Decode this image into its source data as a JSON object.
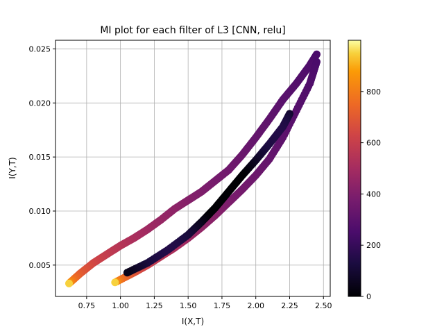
{
  "chart_data": {
    "type": "scatter",
    "title": "MI plot for each filter of L3 [CNN, relu]",
    "xlabel": "I(X,T)",
    "ylabel": "I(Y,T)",
    "xlim": [
      0.52,
      2.55
    ],
    "ylim": [
      0.0021,
      0.0258
    ],
    "xticks": [
      0.75,
      1.0,
      1.25,
      1.5,
      1.75,
      2.0,
      2.25,
      2.5
    ],
    "xtick_labels": [
      "0.75",
      "1.00",
      "1.25",
      "1.50",
      "1.75",
      "2.00",
      "2.25",
      "2.50"
    ],
    "yticks": [
      0.005,
      0.01,
      0.015,
      0.02,
      0.025
    ],
    "ytick_labels": [
      "0.005",
      "0.010",
      "0.015",
      "0.020",
      "0.025"
    ],
    "grid": true,
    "colormap": "inferno",
    "color_range": [
      0,
      1000
    ],
    "colorbar_ticks": [
      0,
      200,
      400,
      600,
      800
    ],
    "colorbar_tick_labels": [
      "0",
      "200",
      "400",
      "600",
      "800"
    ],
    "series": [
      {
        "points": [
          [
            0.62,
            0.0033
          ],
          [
            0.7,
            0.0042
          ],
          [
            0.8,
            0.0052
          ],
          [
            0.9,
            0.006
          ],
          [
            1.0,
            0.0068
          ],
          [
            1.1,
            0.0075
          ],
          [
            1.2,
            0.0083
          ],
          [
            1.3,
            0.0092
          ],
          [
            1.4,
            0.0102
          ],
          [
            1.5,
            0.011
          ],
          [
            1.6,
            0.0118
          ],
          [
            1.7,
            0.0128
          ],
          [
            1.8,
            0.0138
          ],
          [
            1.9,
            0.0152
          ],
          [
            2.0,
            0.0168
          ],
          [
            2.1,
            0.0185
          ],
          [
            2.2,
            0.0203
          ],
          [
            2.3,
            0.0218
          ],
          [
            2.4,
            0.0235
          ],
          [
            2.45,
            0.0245
          ]
        ]
      },
      {
        "points": [
          [
            0.96,
            0.0034
          ],
          [
            1.1,
            0.0043
          ],
          [
            1.2,
            0.005
          ],
          [
            1.3,
            0.0058
          ],
          [
            1.4,
            0.0066
          ],
          [
            1.5,
            0.0075
          ],
          [
            1.6,
            0.0085
          ],
          [
            1.7,
            0.0096
          ],
          [
            1.8,
            0.0108
          ],
          [
            1.9,
            0.012
          ],
          [
            2.0,
            0.0133
          ],
          [
            2.1,
            0.0148
          ],
          [
            2.2,
            0.0168
          ],
          [
            2.3,
            0.0193
          ],
          [
            2.4,
            0.0218
          ],
          [
            2.45,
            0.0238
          ]
        ]
      },
      {
        "points": [
          [
            1.05,
            0.0043
          ],
          [
            1.2,
            0.0052
          ],
          [
            1.35,
            0.0064
          ],
          [
            1.5,
            0.0078
          ],
          [
            1.6,
            0.009
          ],
          [
            1.7,
            0.0103
          ],
          [
            1.8,
            0.0118
          ],
          [
            1.9,
            0.0133
          ],
          [
            2.0,
            0.0147
          ],
          [
            2.1,
            0.0162
          ],
          [
            2.2,
            0.0178
          ],
          [
            2.25,
            0.019
          ]
        ]
      }
    ]
  }
}
